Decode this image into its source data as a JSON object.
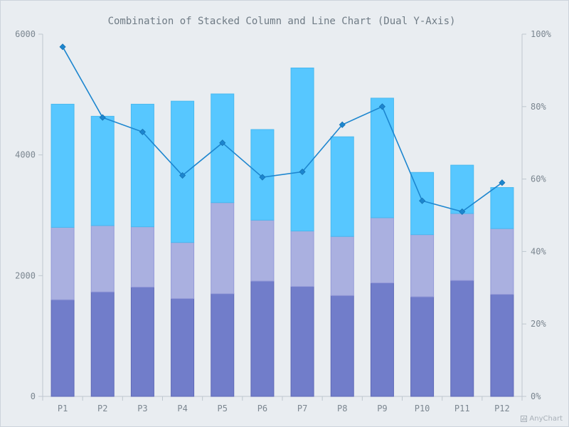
{
  "chart_data": {
    "type": "bar",
    "title": "Combination of Stacked Column and Line Chart (Dual Y-Axis)",
    "categories": [
      "P1",
      "P2",
      "P3",
      "P4",
      "P5",
      "P6",
      "P7",
      "P8",
      "P9",
      "P10",
      "P11",
      "P12"
    ],
    "series": [
      {
        "type": "bar",
        "stack": "primary",
        "color": "#717dca",
        "values": [
          1600,
          1730,
          1810,
          1620,
          1700,
          1910,
          1820,
          1670,
          1880,
          1650,
          1920,
          1690
        ]
      },
      {
        "type": "bar",
        "stack": "primary",
        "color": "#aab0e0",
        "values": [
          1200,
          1100,
          1000,
          930,
          1510,
          1010,
          920,
          980,
          1080,
          1030,
          1110,
          1090
        ]
      },
      {
        "type": "bar",
        "stack": "primary",
        "color": "#57c7ff",
        "values": [
          2040,
          1810,
          2030,
          2340,
          1800,
          1500,
          2700,
          1650,
          1980,
          1030,
          800,
          680
        ]
      },
      {
        "type": "line",
        "axis": "right",
        "color": "#1d86cf",
        "values": [
          96.5,
          77,
          73,
          61,
          70,
          60.5,
          62,
          75,
          80,
          54,
          51,
          59
        ]
      }
    ],
    "y_left": {
      "ylim": [
        0,
        6000
      ],
      "ticks": [
        "0",
        "2000",
        "4000",
        "6000"
      ]
    },
    "y_right": {
      "ylim": [
        0,
        100
      ],
      "ticks": [
        "0%",
        "20%",
        "40%",
        "60%",
        "80%",
        "100%"
      ]
    },
    "grid": false,
    "legend": "none"
  },
  "credit": {
    "text": "AnyChart"
  }
}
